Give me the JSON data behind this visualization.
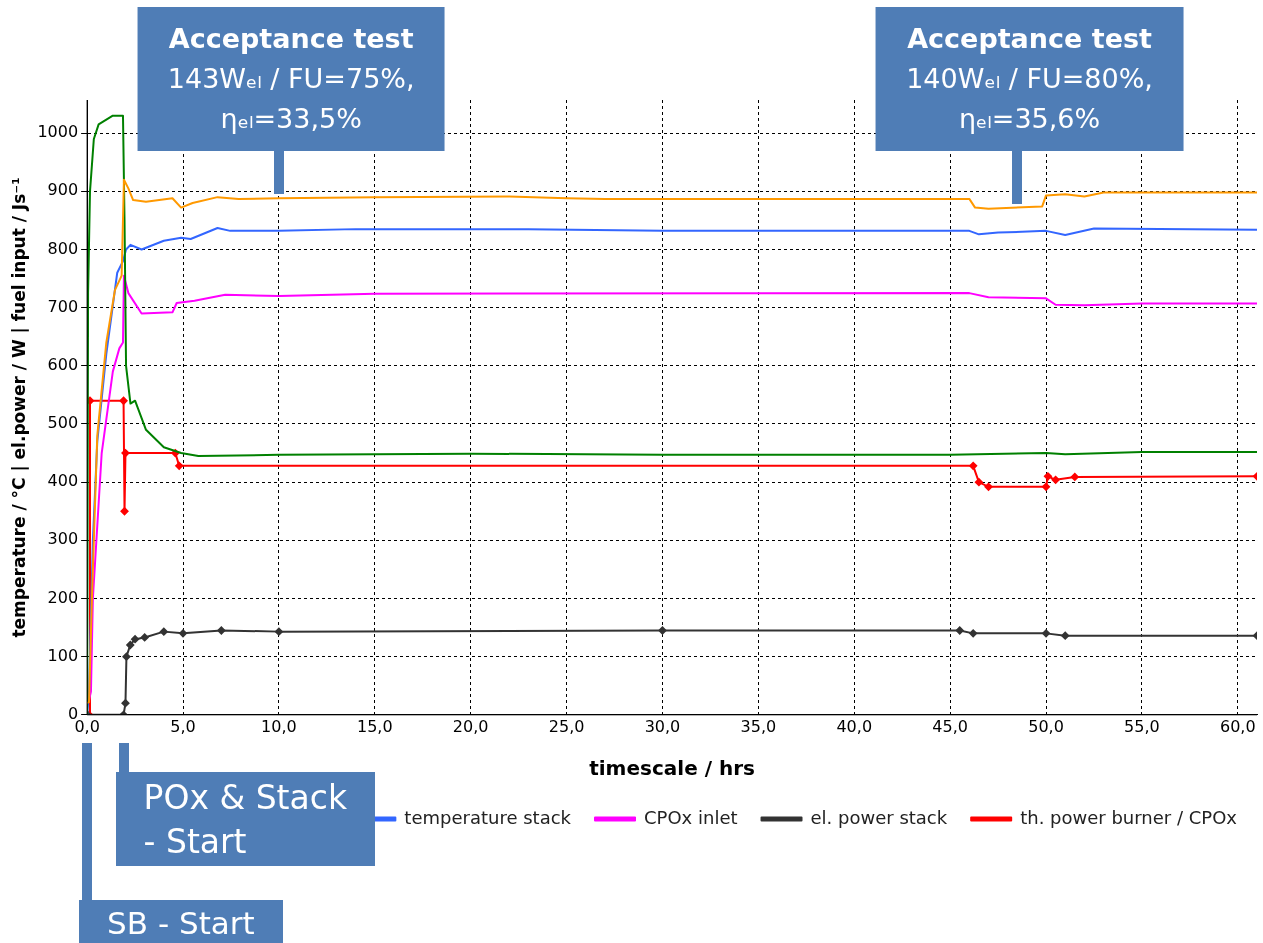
{
  "chart_data": {
    "type": "line",
    "xlabel": "timescale / hrs",
    "ylabel": "temperature / °C | el.power / W | fuel input / Js⁻¹",
    "xlim": [
      0,
      61
    ],
    "ylim": [
      0,
      1057
    ],
    "xticks": [
      {
        "value": 0,
        "label": "0,0"
      },
      {
        "value": 5,
        "label": "5,0"
      },
      {
        "value": 10,
        "label": "10,0"
      },
      {
        "value": 15,
        "label": "15,0"
      },
      {
        "value": 20,
        "label": "20,0"
      },
      {
        "value": 25,
        "label": "25,0"
      },
      {
        "value": 30,
        "label": "30,0"
      },
      {
        "value": 35,
        "label": "35,0"
      },
      {
        "value": 40,
        "label": "40,0"
      },
      {
        "value": 45,
        "label": "45,0"
      },
      {
        "value": 50,
        "label": "50,0"
      },
      {
        "value": 55,
        "label": "55,0"
      },
      {
        "value": 60,
        "label": "60,0"
      }
    ],
    "yticks": [
      0,
      100,
      200,
      300,
      400,
      500,
      600,
      700,
      800,
      900,
      1000
    ],
    "grid": true,
    "legend": "bottom right",
    "series": [
      {
        "color": "#ff9900",
        "marker": "none",
        "x": [
          0,
          0.1,
          0.25,
          0.53,
          1.0,
          1.45,
          1.8,
          1.92,
          2.15,
          2.4,
          3.07,
          4.45,
          4.9,
          5.5,
          6.8,
          7.9,
          10,
          15,
          22,
          25,
          27,
          46,
          46.3,
          47,
          49.8,
          50,
          51,
          52,
          53,
          61
        ],
        "values": [
          20,
          22,
          200,
          480,
          640,
          730,
          755,
          920,
          905,
          885,
          882,
          888,
          872,
          880,
          890,
          887,
          888,
          890,
          891,
          888,
          887,
          887,
          872,
          870,
          874,
          893,
          895,
          891,
          898,
          898
        ]
      },
      {
        "color": "#008000",
        "marker": "none",
        "x": [
          0,
          0.05,
          0.15,
          0.35,
          0.6,
          1.34,
          1.87,
          1.95,
          2.03,
          2.26,
          2.5,
          3.07,
          4.0,
          4.9,
          5.8,
          10,
          20,
          30,
          45,
          50,
          51,
          55,
          61
        ],
        "values": [
          0,
          725,
          900,
          990,
          1015,
          1030,
          1030,
          850,
          600,
          535,
          540,
          490,
          460,
          450,
          445,
          447,
          449,
          447,
          447,
          450,
          448,
          452,
          452
        ]
      },
      {
        "name": "temperature stack",
        "color": "#3366ff",
        "marker": "none",
        "x": [
          0,
          0.1,
          0.3,
          0.53,
          1.0,
          1.57,
          1.87,
          2.03,
          2.26,
          2.84,
          4.0,
          4.9,
          5.4,
          6.8,
          7.46,
          10,
          14,
          23,
          30,
          46,
          46.5,
          47.5,
          50,
          51,
          52.5,
          61
        ],
        "values": [
          0,
          40,
          300,
          470,
          620,
          760,
          780,
          800,
          808,
          800,
          815,
          820,
          818,
          837,
          832,
          832,
          835,
          835,
          832,
          832,
          826,
          829,
          832,
          825,
          836,
          834
        ]
      },
      {
        "name": "CPOx inlet",
        "color": "#ff00ff",
        "marker": "none",
        "x": [
          0,
          0.1,
          0.2,
          0.3,
          0.76,
          1.34,
          1.68,
          1.87,
          1.92,
          2.15,
          2.84,
          4.45,
          4.67,
          5.6,
          7.2,
          10,
          15,
          46,
          47,
          50,
          50.5,
          52,
          55,
          61
        ],
        "values": [
          25,
          25,
          40,
          200,
          450,
          590,
          630,
          640,
          755,
          725,
          690,
          692,
          708,
          712,
          722,
          720,
          724,
          725,
          718,
          716,
          705,
          704,
          707,
          707
        ]
      },
      {
        "name": "el. power stack",
        "color": "#333333",
        "marker": "diamond",
        "x": [
          0,
          1.9,
          2.0,
          2.05,
          2.25,
          2.5,
          3.0,
          4.0,
          5.0,
          7,
          10,
          30,
          45.5,
          46.2,
          50,
          51,
          61
        ],
        "values": [
          0,
          0,
          20,
          100,
          120,
          130,
          133,
          143,
          140,
          145,
          143,
          145,
          145,
          140,
          140,
          136,
          136
        ]
      },
      {
        "name": "th. power burner / CPOx",
        "color": "#ff0000",
        "marker": "diamond",
        "x": [
          0,
          0.1,
          0.15,
          1.9,
          1.95,
          2.0,
          4.6,
          4.8,
          46.2,
          46.5,
          47,
          50,
          50.1,
          50.5,
          51.5,
          61
        ],
        "values": [
          0,
          0,
          540,
          540,
          350,
          450,
          450,
          428,
          428,
          400,
          392,
          392,
          410,
          404,
          409,
          410
        ]
      }
    ],
    "annotations": [
      {
        "text": "Acceptance test\n143Wₑₗ / FU=75%,\nηₑₗ=33,5%",
        "x": 10,
        "y": 888
      },
      {
        "text": "Acceptance test\n140Wₑₗ / FU=80%,\nηₑₗ=35,6%",
        "x": 48.5,
        "y": 872
      },
      {
        "text": "POx & Stack\n- Start",
        "x": 1.9,
        "y": 0
      },
      "SB - Start"
    ]
  }
}
